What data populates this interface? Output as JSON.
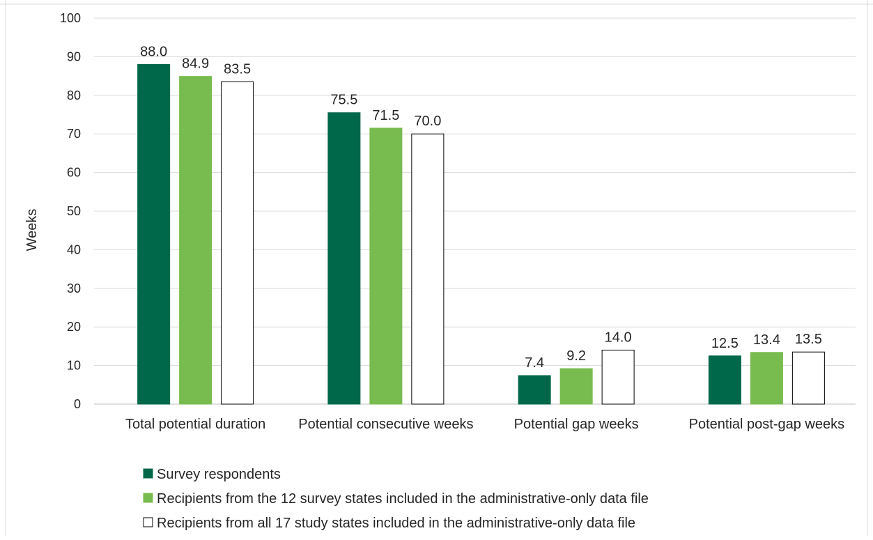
{
  "chart_data": {
    "type": "bar",
    "title": "",
    "xlabel": "",
    "ylabel": "Weeks",
    "ylim": [
      0,
      100
    ],
    "yticks": [
      0,
      10,
      20,
      30,
      40,
      50,
      60,
      70,
      80,
      90,
      100
    ],
    "grid": true,
    "legend_position": "bottom",
    "categories": [
      "Total potential duration",
      "Potential consecutive weeks",
      "Potential gap weeks",
      "Potential post-gap weeks"
    ],
    "series": [
      {
        "name": "Survey respondents",
        "values": [
          88.0,
          75.5,
          7.4,
          12.5
        ],
        "color": "#00684A",
        "stroke": "#00684A"
      },
      {
        "name": "Recipients from the 12 survey states included in the administrative-only data file",
        "values": [
          84.9,
          71.5,
          9.2,
          13.4
        ],
        "color": "#78BB4E",
        "stroke": "#78BB4E"
      },
      {
        "name": "Recipients from all 17 study states included in the administrative-only data file",
        "values": [
          83.5,
          70.0,
          14.0,
          13.5
        ],
        "color": "#FFFFFF",
        "stroke": "#000000"
      }
    ]
  }
}
